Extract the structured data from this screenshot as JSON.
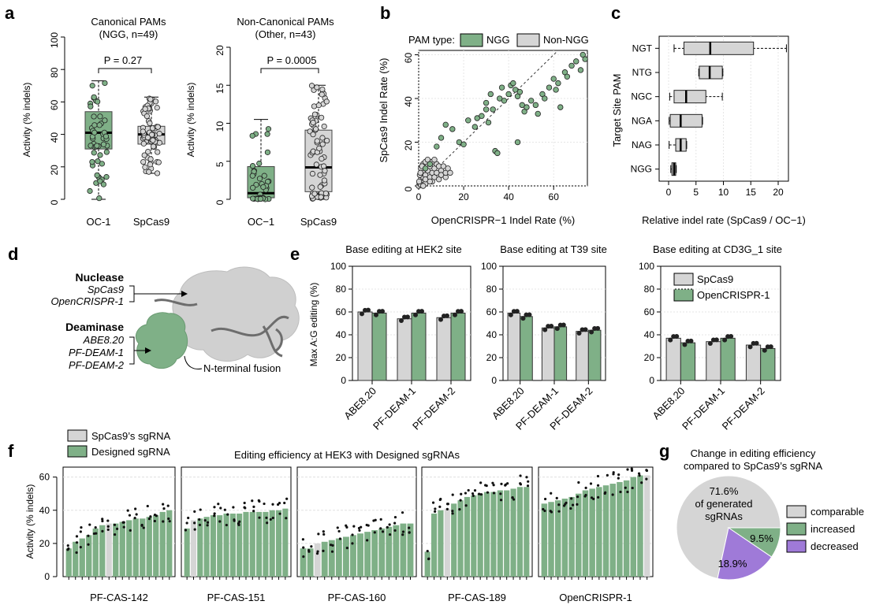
{
  "colors": {
    "green": "#7fb087",
    "grey": "#d5d5d5",
    "purple": "#9f7ad8",
    "dark": "#222222"
  },
  "panel_labels": {
    "a": "a",
    "b": "b",
    "c": "c",
    "d": "d",
    "e": "e",
    "f": "f",
    "g": "g"
  },
  "chart_data": [
    {
      "id": "a1",
      "type": "box",
      "title": "Canonical PAMs",
      "subtitle": "(NGG, n=49)",
      "ylabel": "Activity (% indels)",
      "ylim": [
        0,
        100
      ],
      "yticks": [
        0,
        20,
        40,
        60,
        80,
        100
      ],
      "categories": [
        "OC-1",
        "SpCas9"
      ],
      "boxes": [
        {
          "name": "OC-1",
          "min": 0,
          "q1": 31,
          "median": 41,
          "q3": 54,
          "max": 73,
          "color": "green"
        },
        {
          "name": "SpCas9",
          "min": 16,
          "q1": 34,
          "median": 40,
          "q3": 45,
          "max": 63,
          "color": "grey"
        }
      ],
      "annotation": "P = 0.27"
    },
    {
      "id": "a2",
      "type": "box",
      "title": "Non-Canonical PAMs",
      "subtitle": "(Other, n=43)",
      "ylabel": "Activity (% indels)",
      "ylim": [
        0,
        20
      ],
      "yticks": [
        0,
        5,
        10,
        15,
        20
      ],
      "categories": [
        "OC−1",
        "SpCas9"
      ],
      "boxes": [
        {
          "name": "OC−1",
          "min": 0,
          "q1": 0.2,
          "median": 0.8,
          "q3": 4.3,
          "max": 10.5,
          "color": "green"
        },
        {
          "name": "SpCas9",
          "min": 0,
          "q1": 1.0,
          "median": 4.2,
          "q3": 9.1,
          "max": 15,
          "color": "grey"
        }
      ],
      "annotation": "P = 0.0005"
    },
    {
      "id": "b",
      "type": "scatter",
      "xlabel": "OpenCRISPR−1 Indel Rate (%)",
      "ylabel": "SpCas9 Indel Rate (%)",
      "xlim": [
        0,
        75
      ],
      "ylim": [
        0,
        62
      ],
      "xticks": [
        0,
        20,
        40,
        60
      ],
      "yticks": [
        0,
        20,
        40,
        60
      ],
      "legend_title": "PAM type:",
      "series": [
        {
          "name": "NGG",
          "color": "green",
          "points": [
            [
              3,
              8
            ],
            [
              5,
              10
            ],
            [
              8,
              18
            ],
            [
              10,
              22
            ],
            [
              12,
              28
            ],
            [
              15,
              26
            ],
            [
              18,
              20
            ],
            [
              20,
              19
            ],
            [
              22,
              30
            ],
            [
              25,
              27
            ],
            [
              28,
              32
            ],
            [
              30,
              38
            ],
            [
              31,
              29
            ],
            [
              32,
              42
            ],
            [
              33,
              35
            ],
            [
              34,
              16
            ],
            [
              35,
              15
            ],
            [
              36,
              40
            ],
            [
              38,
              39
            ],
            [
              40,
              42
            ],
            [
              41,
              46
            ],
            [
              42,
              47
            ],
            [
              43,
              44
            ],
            [
              44,
              41
            ],
            [
              45,
              43
            ],
            [
              46,
              37
            ],
            [
              47,
              34
            ],
            [
              48,
              36
            ],
            [
              50,
              39
            ],
            [
              52,
              37
            ],
            [
              53,
              33
            ],
            [
              55,
              42
            ],
            [
              56,
              40
            ],
            [
              58,
              45
            ],
            [
              60,
              49
            ],
            [
              61,
              44
            ],
            [
              62,
              47
            ],
            [
              63,
              36
            ],
            [
              65,
              52
            ],
            [
              66,
              50
            ],
            [
              68,
              55
            ],
            [
              70,
              57
            ],
            [
              72,
              53
            ],
            [
              73,
              60
            ],
            [
              74,
              58
            ],
            [
              44,
              20
            ],
            [
              30,
              35
            ],
            [
              26,
              31
            ],
            [
              37,
              45
            ]
          ]
        },
        {
          "name": "Non-NGG",
          "color": "grey",
          "points": [
            [
              0,
              0
            ],
            [
              0.5,
              1
            ],
            [
              1,
              2
            ],
            [
              1,
              3
            ],
            [
              1.5,
              1
            ],
            [
              2,
              4
            ],
            [
              2,
              6
            ],
            [
              2.5,
              2
            ],
            [
              3,
              5
            ],
            [
              3,
              1
            ],
            [
              4,
              3
            ],
            [
              4,
              7
            ],
            [
              5,
              4
            ],
            [
              5,
              9
            ],
            [
              6,
              6
            ],
            [
              6,
              2
            ],
            [
              7,
              8
            ],
            [
              7,
              4
            ],
            [
              8,
              6
            ],
            [
              8,
              10
            ],
            [
              9,
              3
            ],
            [
              9,
              9
            ],
            [
              10,
              7
            ],
            [
              10,
              5
            ],
            [
              11,
              9
            ],
            [
              12,
              4
            ],
            [
              12,
              6
            ],
            [
              13,
              8
            ],
            [
              0.5,
              5
            ],
            [
              1,
              8
            ],
            [
              2,
              10
            ],
            [
              3,
              11
            ],
            [
              4,
              12
            ],
            [
              1,
              0.5
            ],
            [
              0.2,
              2
            ],
            [
              6,
              11
            ],
            [
              7,
              12
            ],
            [
              2,
              0
            ],
            [
              3,
              3
            ],
            [
              5,
              2
            ],
            [
              0.8,
              6
            ],
            [
              1.5,
              9
            ],
            [
              14,
              6
            ]
          ]
        }
      ]
    },
    {
      "id": "c",
      "type": "box",
      "ylabel": "Target Site PAM",
      "xlabel": "Relative indel rate (SpCas9 / OC−1)",
      "xlim": [
        0,
        22
      ],
      "xticks": [
        0,
        5,
        10,
        15,
        20
      ],
      "categories": [
        "NGT",
        "NTG",
        "NGC",
        "NGA",
        "NAG",
        "NGG"
      ],
      "boxes": [
        {
          "name": "NGT",
          "min": 1,
          "q1": 2.8,
          "median": 7.6,
          "q3": 15.5,
          "max": 21.5
        },
        {
          "name": "NTG",
          "min": 5.5,
          "q1": 5.6,
          "median": 7.5,
          "q3": 9.8,
          "max": 9.9
        },
        {
          "name": "NGC",
          "min": 0.2,
          "q1": 1.0,
          "median": 3.2,
          "q3": 6.8,
          "max": 9.8
        },
        {
          "name": "NGA",
          "min": 0.1,
          "q1": 0.3,
          "median": 2.2,
          "q3": 6.1,
          "max": 6.2
        },
        {
          "name": "NAG",
          "min": 0.1,
          "q1": 1.3,
          "median": 2.2,
          "q3": 3.2,
          "max": 3.3
        },
        {
          "name": "NGG",
          "min": 0.4,
          "q1": 0.6,
          "median": 1.0,
          "q3": 1.3,
          "max": 1.4
        }
      ]
    },
    {
      "id": "e",
      "type": "bar",
      "ylabel": "Max A:G editing (%)",
      "ylim": [
        0,
        100
      ],
      "yticks": [
        0,
        20,
        40,
        60,
        80,
        100
      ],
      "categories": [
        "ABE8.20",
        "PF-DEAM-1",
        "PF-DEAM-2"
      ],
      "legend": [
        "SpCas9",
        "OpenCRISPR-1"
      ],
      "panels": [
        {
          "title": "Base editing at HEK2 site",
          "series": [
            {
              "name": "SpCas9",
              "values": [
                60,
                54,
                55
              ]
            },
            {
              "name": "OpenCRISPR-1",
              "values": [
                59,
                59,
                59
              ]
            }
          ]
        },
        {
          "title": "Base editing at T39 site",
          "series": [
            {
              "name": "SpCas9",
              "values": [
                59,
                46,
                43
              ]
            },
            {
              "name": "OpenCRISPR-1",
              "values": [
                56,
                47,
                44
              ]
            }
          ]
        },
        {
          "title": "Base editing at CD3G_1 site",
          "series": [
            {
              "name": "SpCas9",
              "values": [
                37,
                34,
                31
              ]
            },
            {
              "name": "OpenCRISPR-1",
              "values": [
                33,
                37,
                28
              ]
            }
          ]
        }
      ]
    },
    {
      "id": "f",
      "type": "bar",
      "title": "Editing efficiency at HEK3 with Designed sgRNAs",
      "ylabel": "Activity (% indels)",
      "ylim": [
        0,
        66
      ],
      "yticks": [
        0,
        20,
        40,
        60
      ],
      "legend": [
        "SpCas9’s sgRNA",
        "Designed sgRNA"
      ],
      "panels": [
        {
          "name": "PF-CAS-142",
          "values": [
            17,
            21,
            23,
            25,
            29,
            31,
            32,
            32,
            33,
            34,
            35,
            35,
            36,
            37,
            39,
            40
          ],
          "ref_index": 6
        },
        {
          "name": "PF-CAS-151",
          "values": [
            29,
            34,
            35,
            36,
            37,
            37,
            38,
            38,
            38,
            39,
            39,
            39,
            39,
            40,
            40,
            41
          ],
          "ref_index": 1
        },
        {
          "name": "PF-CAS-160",
          "values": [
            17,
            17,
            20,
            21,
            22,
            23,
            24,
            25,
            26,
            27,
            28,
            29,
            30,
            31,
            32,
            32
          ],
          "ref_index": 2
        },
        {
          "name": "PF-CAS-189",
          "values": [
            15,
            38,
            40,
            41,
            44,
            46,
            48,
            49,
            50,
            51,
            51,
            52,
            52,
            53,
            54,
            54
          ],
          "ref_index": 3
        },
        {
          "name": "OpenCRISPR-1",
          "values": [
            44,
            45,
            46,
            47,
            48,
            50,
            52,
            53,
            54,
            55,
            56,
            57,
            58,
            60,
            61,
            61
          ],
          "ref_index": 15
        }
      ]
    },
    {
      "id": "g",
      "type": "pie",
      "title": "Change in editing efficiency",
      "subtitle": "compared to SpCas9’s sgRNA",
      "slices": [
        {
          "name": "comparable",
          "value": 71.6,
          "label": "71.6%",
          "color": "grey"
        },
        {
          "name": "increased",
          "value": 9.5,
          "label": "9.5%",
          "color": "green"
        },
        {
          "name": "decreased",
          "value": 18.9,
          "label": "18.9%",
          "color": "purple"
        }
      ],
      "center_lines": [
        "of generated",
        "sgRNAs"
      ]
    }
  ],
  "panel_d": {
    "nuclease_title": "Nuclease",
    "nuclease_items": [
      "SpCas9",
      "OpenCRISPR-1"
    ],
    "deaminase_title": "Deaminase",
    "deaminase_items": [
      "ABE8.20",
      "PF-DEAM-1",
      "PF-DEAM-2"
    ],
    "fusion_label": "N-terminal fusion"
  }
}
